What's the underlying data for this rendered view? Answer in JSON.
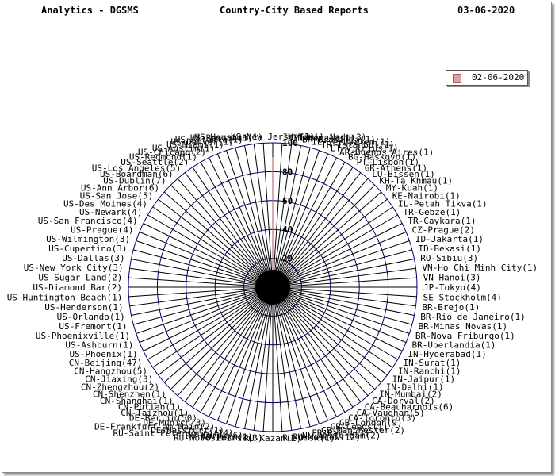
{
  "header": {
    "left": "Analytics - DGSMS",
    "center": "Country-City Based Reports",
    "right": "03-06-2020"
  },
  "chart_data": {
    "type": "radar",
    "title": "Country-City Based Reports",
    "rlim": [
      0,
      100
    ],
    "r_ticks": [
      20,
      40,
      60,
      80,
      100
    ],
    "legend_position": "top-right",
    "series": [
      {
        "name": "02-06-2020",
        "color": "#d9a3a3",
        "line": "#b15a5a",
        "values": [
          90,
          0,
          0,
          0,
          0,
          0,
          0,
          0,
          0,
          0,
          0,
          0,
          0,
          0,
          0,
          0,
          0,
          0,
          0,
          0,
          0,
          0,
          0,
          0,
          0,
          0,
          0,
          0,
          0,
          0,
          0,
          0,
          0,
          0,
          0,
          0,
          0,
          0,
          0,
          0,
          0,
          0,
          0,
          0,
          0,
          0,
          0,
          0,
          0,
          0,
          0,
          0,
          0,
          0,
          0,
          0,
          0,
          0,
          0,
          0,
          0,
          0,
          0,
          0,
          0,
          0,
          0,
          0,
          0,
          0,
          0,
          0,
          0,
          0,
          0,
          0,
          0,
          0,
          0,
          0,
          0,
          0,
          0,
          0,
          0,
          0,
          0,
          0,
          0,
          0,
          0,
          0,
          0,
          0,
          0,
          0
        ]
      }
    ],
    "categories": [
      "US-New Jersey(1)",
      "IN-Tamil Nadu(3)",
      "IN-Kerala(1)",
      "BR-Brasilia(1)",
      "IL-Jerusalem(1)",
      "TR-Istanbul(1)",
      "LT-Vilnius(1)",
      "AR-Buenos Aires(1)",
      "BG-Haskovo(1)",
      "PT-Lisbon(1)",
      "GR-Athens(1)",
      "LU-Bissen(1)",
      "KH-Ta Khmau(1)",
      "MY-Kuah(1)",
      "KE-Nairobi(1)",
      "IL-Petah Tikva(1)",
      "TR-Gebze(1)",
      "TR-Caykara(1)",
      "CZ-Prague(2)",
      "ID-Jakarta(1)",
      "ID-Bekasi(1)",
      "RO-Sibiu(3)",
      "VN-Ho Chi Minh City(1)",
      "VN-Hanoi(3)",
      "JP-Tokyo(4)",
      "SE-Stockholm(4)",
      "BR-Brejo(1)",
      "BR-Rio de Janeiro(1)",
      "BR-Minas Novas(1)",
      "BR-Nova Friburgo(1)",
      "BR-Uberlandia(1)",
      "IN-Hyderabad(1)",
      "IN-Surat(1)",
      "IN-Ranchi(1)",
      "IN-Jaipur(1)",
      "IN-Delhi(1)",
      "IN-Mumbai(2)",
      "CA-Dorval(2)",
      "CA-Beauharnois(6)",
      "CA-Vaughan(5)",
      "CA-Toronto(3)",
      "GB-London(9)",
      "GB-Leeds(1)",
      "GB-Manchester(2)",
      "FR-Paris(3)",
      "NL-Amsterdam(2)",
      "RU-Moscow(12)",
      "RU-Omsk(1)",
      "RU-Kazan(2)",
      "RU-Novosibirsk(3)",
      "RU-Perm(1)",
      "RU-Kursk(6)",
      "RU-Saint Petersburg(14)",
      "DE-Hassfurt(1)",
      "DE-Frankfurt am Main(2)",
      "DE-Munich(3)",
      "DE-Berlin(50)",
      "CN-Taizhou(1)",
      "CN-Putian(1)",
      "CN-Shanghai(1)",
      "CN-Shenzhen(1)",
      "CN-Zhengzhou(2)",
      "CN-Jiaxing(3)",
      "CN-Hangzhou(5)",
      "CN-Beijing(47)",
      "US-Phoenix(1)",
      "US-Ashburn(1)",
      "US-Phoenixville(1)",
      "US-Fremont(1)",
      "US-Orlando(1)",
      "US-Henderson(1)",
      "US-Huntington Beach(1)",
      "US-Diamond Bar(2)",
      "US-Sugar Land(2)",
      "US-New York City(3)",
      "US-Dallas(3)",
      "US-Cupertino(3)",
      "US-Wilmington(3)",
      "US-Prague(4)",
      "US-San Francisco(4)",
      "US-Newark(4)",
      "US-Des Moines(4)",
      "US-San Jose(5)",
      "US-Ann Arbor(6)",
      "US-Dublin(7)",
      "US-Boardman(6)",
      "US-Los Angeles(5)",
      "US-Seattle(2)",
      "US-Redmond(1)",
      "US-Chicago(2)",
      "US-Austin(1)",
      "US-Miami(1)",
      "US-Denver(1)",
      "US-Atlanta(1)",
      "US-Boston(1)",
      "US-Houston(1)"
    ]
  }
}
